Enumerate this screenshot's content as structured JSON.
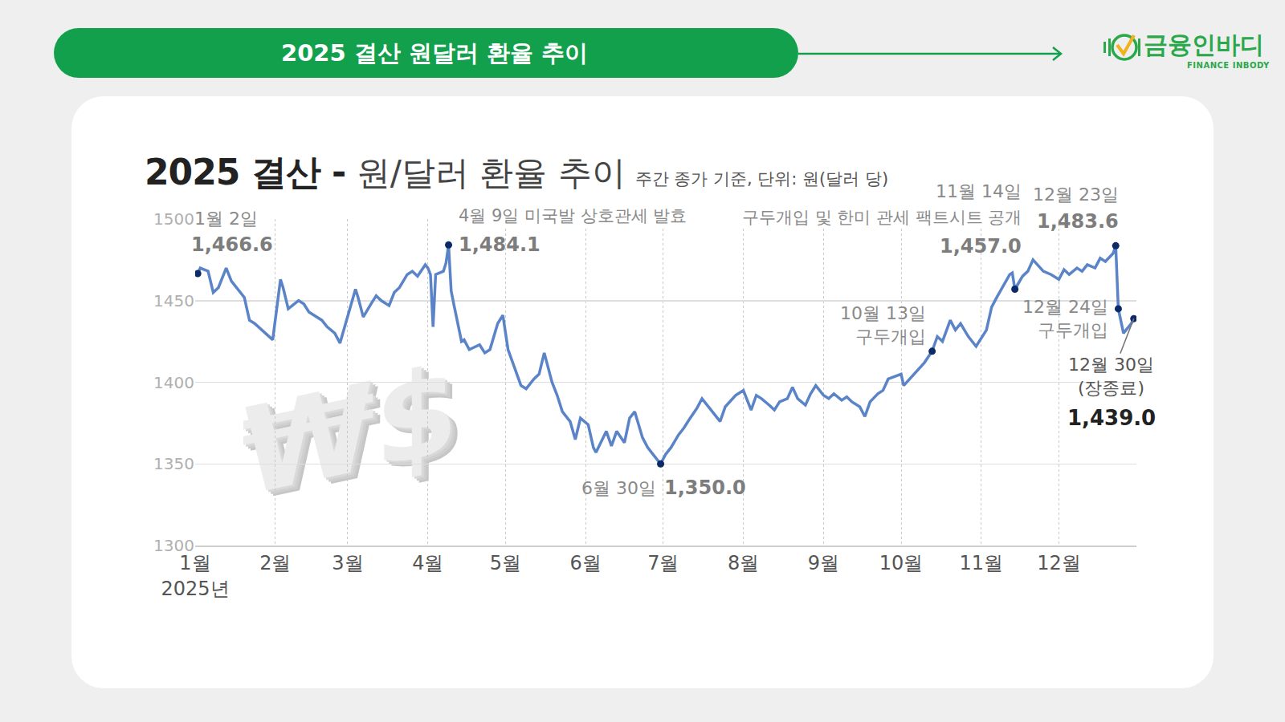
{
  "header": {
    "title": "2025 결산 원달러 환율 추이",
    "logo": "금융인바디",
    "logo_sub": "FINANCE INBODY"
  },
  "chart_data": {
    "type": "line",
    "title": "2025 결산 - 원/달러 환율 추이",
    "subtitle": "주간 종가 기준, 단위: 원(달러 당)",
    "watermark": "₩$",
    "color": "#5b84c8",
    "grid": true,
    "xlim": [
      "2025-01-01",
      "2025-12-31"
    ],
    "xticks": [
      {
        "value": "2025-01-01",
        "label": "1월\n2025년"
      },
      {
        "value": "2025-02-01",
        "label": "2월"
      },
      {
        "value": "2025-03-01",
        "label": "3월"
      },
      {
        "value": "2025-04-01",
        "label": "4월"
      },
      {
        "value": "2025-05-01",
        "label": "5월"
      },
      {
        "value": "2025-06-01",
        "label": "6월"
      },
      {
        "value": "2025-07-01",
        "label": "7월"
      },
      {
        "value": "2025-08-01",
        "label": "8월"
      },
      {
        "value": "2025-09-01",
        "label": "9월"
      },
      {
        "value": "2025-10-01",
        "label": "10월"
      },
      {
        "value": "2025-11-01",
        "label": "11월"
      },
      {
        "value": "2025-12-01",
        "label": "12월"
      }
    ],
    "ylim": [
      1300,
      1500
    ],
    "yticks": [
      1300,
      1350,
      1400,
      1450,
      1500
    ],
    "x": [
      "2025-01-02",
      "2025-01-03",
      "2025-01-06",
      "2025-01-08",
      "2025-01-10",
      "2025-01-13",
      "2025-01-15",
      "2025-01-17",
      "2025-01-20",
      "2025-01-22",
      "2025-01-24",
      "2025-01-31",
      "2025-02-03",
      "2025-02-04",
      "2025-02-06",
      "2025-02-10",
      "2025-02-12",
      "2025-02-14",
      "2025-02-17",
      "2025-02-19",
      "2025-02-21",
      "2025-02-24",
      "2025-02-26",
      "2025-02-28",
      "2025-03-04",
      "2025-03-05",
      "2025-03-07",
      "2025-03-10",
      "2025-03-12",
      "2025-03-14",
      "2025-03-17",
      "2025-03-19",
      "2025-03-21",
      "2025-03-24",
      "2025-03-26",
      "2025-03-28",
      "2025-03-31",
      "2025-04-01",
      "2025-04-02",
      "2025-04-03",
      "2025-04-04",
      "2025-04-07",
      "2025-04-08",
      "2025-04-09",
      "2025-04-10",
      "2025-04-11",
      "2025-04-14",
      "2025-04-15",
      "2025-04-17",
      "2025-04-21",
      "2025-04-23",
      "2025-04-25",
      "2025-04-28",
      "2025-04-30",
      "2025-05-02",
      "2025-05-07",
      "2025-05-09",
      "2025-05-12",
      "2025-05-14",
      "2025-05-16",
      "2025-05-19",
      "2025-05-21",
      "2025-05-23",
      "2025-05-26",
      "2025-05-28",
      "2025-05-30",
      "2025-06-02",
      "2025-06-04",
      "2025-06-05",
      "2025-06-09",
      "2025-06-11",
      "2025-06-13",
      "2025-06-16",
      "2025-06-18",
      "2025-06-20",
      "2025-06-23",
      "2025-06-25",
      "2025-06-27",
      "2025-06-30",
      "2025-07-02",
      "2025-07-04",
      "2025-07-07",
      "2025-07-09",
      "2025-07-11",
      "2025-07-14",
      "2025-07-16",
      "2025-07-18",
      "2025-07-21",
      "2025-07-23",
      "2025-07-25",
      "2025-07-29",
      "2025-08-01",
      "2025-08-04",
      "2025-08-06",
      "2025-08-08",
      "2025-08-11",
      "2025-08-13",
      "2025-08-15",
      "2025-08-18",
      "2025-08-20",
      "2025-08-22",
      "2025-08-25",
      "2025-08-27",
      "2025-08-29",
      "2025-09-01",
      "2025-09-03",
      "2025-09-05",
      "2025-09-08",
      "2025-09-10",
      "2025-09-12",
      "2025-09-15",
      "2025-09-17",
      "2025-09-19",
      "2025-09-22",
      "2025-09-24",
      "2025-09-26",
      "2025-10-01",
      "2025-10-02",
      "2025-10-10",
      "2025-10-13",
      "2025-10-15",
      "2025-10-17",
      "2025-10-20",
      "2025-10-22",
      "2025-10-24",
      "2025-10-27",
      "2025-10-30",
      "2025-11-03",
      "2025-11-05",
      "2025-11-07",
      "2025-11-10",
      "2025-11-12",
      "2025-11-13",
      "2025-11-14",
      "2025-11-17",
      "2025-11-19",
      "2025-11-21",
      "2025-11-25",
      "2025-11-28",
      "2025-12-01",
      "2025-12-03",
      "2025-12-05",
      "2025-12-08",
      "2025-12-10",
      "2025-12-12",
      "2025-12-15",
      "2025-12-17",
      "2025-12-19",
      "2025-12-22",
      "2025-12-23",
      "2025-12-24",
      "2025-12-26",
      "2025-12-29",
      "2025-12-30"
    ],
    "values": [
      1466.6,
      1470,
      1468,
      1455,
      1458,
      1470,
      1462,
      1458,
      1452,
      1438,
      1436,
      1426,
      1463,
      1458,
      1445,
      1450,
      1448,
      1443,
      1440,
      1438,
      1434,
      1430,
      1424,
      1435,
      1457,
      1452,
      1440,
      1448,
      1453,
      1450,
      1447,
      1455,
      1458,
      1466,
      1468,
      1465,
      1472,
      1470,
      1466,
      1434,
      1466,
      1468,
      1473,
      1484.1,
      1456,
      1448,
      1425,
      1426,
      1420,
      1423,
      1418,
      1420,
      1436,
      1441,
      1420,
      1398,
      1396,
      1402,
      1405,
      1418,
      1400,
      1392,
      1382,
      1376,
      1365,
      1378,
      1374,
      1360,
      1357,
      1370,
      1361,
      1370,
      1363,
      1378,
      1382,
      1366,
      1360,
      1356,
      1350.0,
      1356,
      1360,
      1368,
      1372,
      1377,
      1384,
      1390,
      1386,
      1380,
      1376,
      1385,
      1392,
      1395,
      1383,
      1392,
      1390,
      1386,
      1383,
      1388,
      1390,
      1397,
      1390,
      1386,
      1393,
      1398,
      1392,
      1390,
      1393,
      1389,
      1391,
      1388,
      1385,
      1379,
      1388,
      1393,
      1395,
      1402,
      1405,
      1398,
      1412,
      1419,
      1428,
      1425,
      1438,
      1432,
      1436,
      1428,
      1422,
      1432,
      1446,
      1452,
      1460,
      1466,
      1467,
      1457.0,
      1465,
      1468,
      1475,
      1468,
      1466,
      1463,
      1469,
      1466,
      1470,
      1468,
      1472,
      1470,
      1476,
      1474,
      1479,
      1483.6,
      1445,
      1430,
      1436,
      1439.0
    ],
    "annotations": [
      {
        "x": "2025-01-02",
        "date_label": "1월 2일",
        "value_label": "1,466.6"
      },
      {
        "x": "2025-04-09",
        "event": "4월 9일 미국발 상호관세 발효",
        "value_label": "1,484.1"
      },
      {
        "x": "2025-06-30",
        "date_label": "6월 30일",
        "value_label": "1,350.0"
      },
      {
        "x": "2025-10-13",
        "date_label": "10월 13일",
        "note": "구두개입"
      },
      {
        "x": "2025-11-14",
        "date_label": "11월 14일",
        "value_label": "1,457.0",
        "event": "구두개입 및 한미 관세 팩트시트 공개"
      },
      {
        "x": "2025-12-23",
        "date_label": "12월 23일",
        "value_label": "1,483.6"
      },
      {
        "x": "2025-12-24",
        "date_label": "12월 24일",
        "note": "구두개입"
      },
      {
        "x": "2025-12-30",
        "date_label": "12월 30일",
        "note": "(장종료)",
        "value_label": "1,439.0"
      }
    ]
  }
}
